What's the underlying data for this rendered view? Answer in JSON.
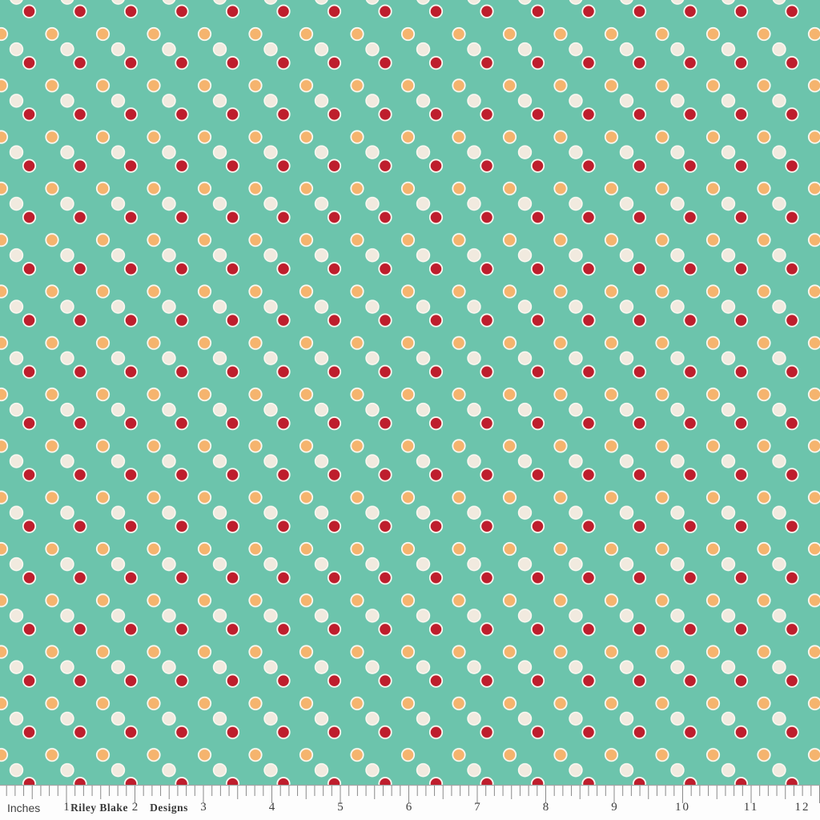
{
  "image_type": "fabric swatch product photo",
  "fabric": {
    "description": "Teal quilting fabric with diagonal trios of dots: orange, cream and red circles each outlined in white, repeating on a seafoam-teal ground",
    "colors": {
      "background_teal": "#6CC4AC",
      "dot_orange": "#F5B46E",
      "dot_cream": "#F1EADF",
      "dot_red": "#BE1E2D",
      "dot_ring_white": "#FBF8F1"
    }
  },
  "ruler": {
    "unit_label": "Inches",
    "brand_left": "Riley Blake",
    "brand_right": "Designs",
    "numbers": [
      "1",
      "2",
      "3",
      "4",
      "5",
      "6",
      "7",
      "8",
      "9",
      "10",
      "11",
      "12"
    ],
    "ink_color": "#8a8a8a",
    "text_color": "#3e3e3e",
    "background": "#FDFDFD"
  }
}
